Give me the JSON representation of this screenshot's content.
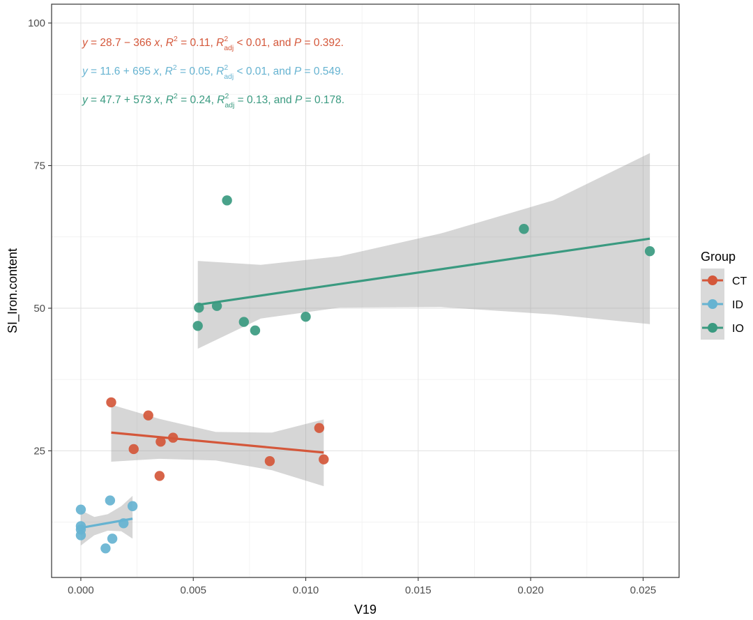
{
  "chart_data": {
    "type": "scatter",
    "xlabel": "V19",
    "ylabel": "SI_Iron.content",
    "xlim": [
      -0.0013,
      0.0266
    ],
    "ylim": [
      2.8,
      103.3
    ],
    "x_ticks": [
      {
        "value": 0.0,
        "label": "0.000"
      },
      {
        "value": 0.005,
        "label": "0.005"
      },
      {
        "value": 0.01,
        "label": "0.010"
      },
      {
        "value": 0.015,
        "label": "0.015"
      },
      {
        "value": 0.02,
        "label": "0.020"
      },
      {
        "value": 0.025,
        "label": "0.025"
      }
    ],
    "y_ticks": [
      {
        "value": 25,
        "label": "25"
      },
      {
        "value": 50,
        "label": "50"
      },
      {
        "value": 75,
        "label": "75"
      },
      {
        "value": 100,
        "label": "100"
      }
    ],
    "grid": true,
    "legend": {
      "title": "Group",
      "placement": "right"
    },
    "series": [
      {
        "name": "CT",
        "color": "#D4573A",
        "x": [
          0.00135,
          0.003,
          0.00235,
          0.00355,
          0.0041,
          0.0035,
          0.0084,
          0.0106,
          0.0108
        ],
        "y": [
          33.5,
          31.2,
          25.3,
          26.6,
          27.3,
          20.6,
          23.2,
          29.0,
          23.5
        ],
        "fit": {
          "x": [
            0.00135,
            0.0108
          ],
          "y": [
            28.2,
            24.7
          ]
        },
        "band": {
          "x": [
            0.00135,
            0.0035,
            0.006,
            0.0085,
            0.0108
          ],
          "lower": [
            23.1,
            23.6,
            23.3,
            21.6,
            18.8
          ],
          "upper": [
            33.1,
            30.6,
            28.3,
            28.2,
            30.5
          ]
        },
        "equation": {
          "y": "y",
          "eqA": " = 28.7 − 366 ",
          "x": "x",
          "r2": "R",
          "r2eq": " = 0.11, ",
          "radj": "R",
          "adjsub": "adj",
          "radjeq": " < 0.01, and ",
          "p": "P",
          "peq": " = 0.392."
        }
      },
      {
        "name": "ID",
        "color": "#66B3D1",
        "x": [
          0.0,
          0.0,
          0.0,
          0.0,
          0.0013,
          0.0023,
          0.0019,
          0.0014,
          0.0011
        ],
        "y": [
          14.7,
          11.8,
          11.2,
          10.2,
          16.3,
          15.3,
          12.3,
          9.6,
          7.9
        ],
        "fit": {
          "x": [
            0.0,
            0.0023
          ],
          "y": [
            11.5,
            13.1
          ]
        },
        "band": {
          "x": [
            0.0,
            0.0006,
            0.0012,
            0.0018,
            0.0023
          ],
          "lower": [
            8.4,
            10.2,
            11.0,
            10.9,
            9.6
          ],
          "upper": [
            14.6,
            13.4,
            13.9,
            15.3,
            17.1
          ]
        },
        "equation": {
          "y": "y",
          "eqA": " = 11.6 + 695 ",
          "x": "x",
          "r2": "R",
          "r2eq": " = 0.05, ",
          "radj": "R",
          "adjsub": "adj",
          "radjeq": " < 0.01, and ",
          "p": "P",
          "peq": " = 0.549."
        }
      },
      {
        "name": "IO",
        "color": "#3A9A80",
        "x": [
          0.00525,
          0.0052,
          0.0065,
          0.00605,
          0.00725,
          0.00775,
          0.01,
          0.0197,
          0.0253
        ],
        "y": [
          50.1,
          46.9,
          68.9,
          50.4,
          47.6,
          46.1,
          48.5,
          63.9,
          60.0
        ],
        "fit": {
          "x": [
            0.0052,
            0.0253
          ],
          "y": [
            50.6,
            62.2
          ]
        },
        "band": {
          "x": [
            0.0052,
            0.008,
            0.0115,
            0.016,
            0.021,
            0.0253
          ],
          "lower": [
            42.9,
            48.2,
            50.1,
            50.2,
            48.9,
            47.2
          ],
          "upper": [
            58.3,
            57.6,
            59.1,
            63.1,
            68.9,
            77.2
          ]
        },
        "equation": {
          "y": "y",
          "eqA": " = 47.7 + 573 ",
          "x": "x",
          "r2": "R",
          "r2eq": " = 0.24, ",
          "radj": "R",
          "adjsub": "adj",
          "radjeq": " = 0.13, and ",
          "p": "P",
          "peq": " = 0.178."
        }
      }
    ]
  }
}
